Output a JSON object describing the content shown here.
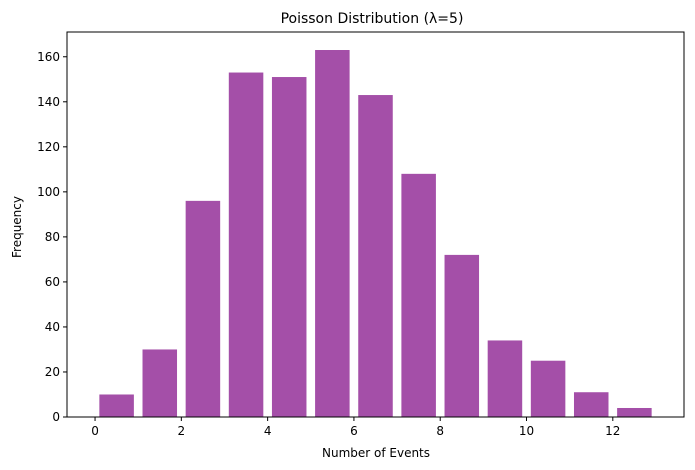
{
  "chart_data": {
    "type": "bar",
    "title": "Poisson Distribution (λ=5)",
    "xlabel": "Number of Events",
    "ylabel": "Frequency",
    "x": [
      0.5,
      1.5,
      2.5,
      3.5,
      4.5,
      5.5,
      6.5,
      7.5,
      8.5,
      9.5,
      10.5,
      11.5,
      12.5
    ],
    "bin_edges": [
      0,
      1,
      2,
      3,
      4,
      5,
      6,
      7,
      8,
      9,
      10,
      11,
      12,
      13
    ],
    "values": [
      10,
      30,
      96,
      153,
      151,
      163,
      143,
      108,
      72,
      34,
      25,
      11,
      4
    ],
    "bar_color": "#a44fa8",
    "xlim": [
      -0.65,
      13.65
    ],
    "ylim": [
      0,
      171
    ],
    "xticks": [
      0,
      2,
      4,
      6,
      8,
      10,
      12
    ],
    "yticks": [
      0,
      20,
      40,
      60,
      80,
      100,
      120,
      140,
      160
    ],
    "grid": false,
    "legend": "none"
  }
}
